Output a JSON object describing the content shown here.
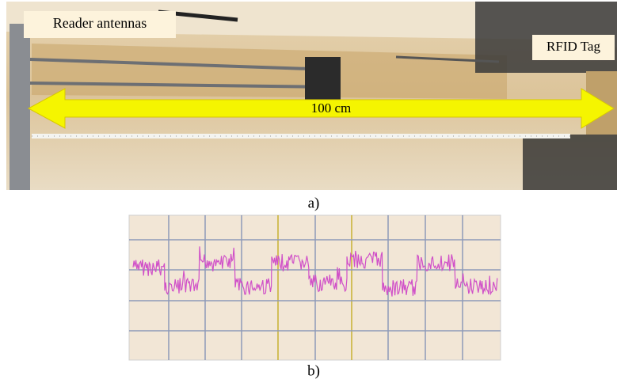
{
  "figure": {
    "panel_a": {
      "left_label": "Reader antennas",
      "right_label": "RFID Tag",
      "distance_label": "100 cm",
      "caption": "a)"
    },
    "panel_b": {
      "caption": "b)"
    }
  }
}
